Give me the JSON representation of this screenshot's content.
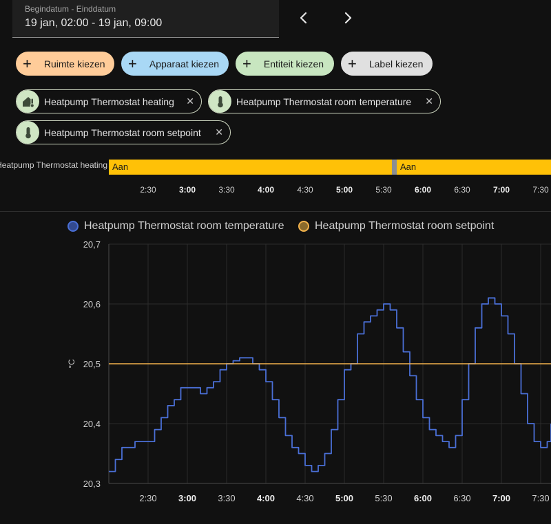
{
  "date_range": {
    "label": "Begindatum - Einddatum",
    "value": "19 jan, 02:00 - 19 jan, 09:00"
  },
  "nav": {
    "prev_icon": "chevron-left-icon",
    "next_icon": "chevron-right-icon"
  },
  "pickers": [
    {
      "label": "Ruimte kiezen",
      "color": "#ffcc99"
    },
    {
      "label": "Apparaat kiezen",
      "color": "#a9d8f5"
    },
    {
      "label": "Entiteit kiezen",
      "color": "#c8e6c0"
    },
    {
      "label": "Label kiezen",
      "color": "#e0e0e0"
    }
  ],
  "selected_entities": [
    {
      "name": "Heatpump Thermostat heating",
      "icon": "home-thermometer-icon"
    },
    {
      "name": "Heatpump Thermostat room temperature",
      "icon": "thermometer-icon"
    },
    {
      "name": "Heatpump Thermostat room setpoint",
      "icon": "thermometer-icon"
    }
  ],
  "timeline": {
    "entity_label": "Heatpump Thermostat heating",
    "segments": [
      {
        "state": "Aan",
        "start": "02:00",
        "end": "05:40"
      },
      {
        "state": "Aan",
        "start": "05:43",
        "end": "09:00"
      }
    ],
    "ticks": [
      "2:30",
      "3:00",
      "3:30",
      "4:00",
      "4:30",
      "5:00",
      "5:30",
      "6:00",
      "6:30",
      "7:00",
      "7:30"
    ],
    "major_ticks": [
      "3:00",
      "4:00",
      "5:00",
      "6:00",
      "7:00"
    ]
  },
  "chart_data": {
    "type": "line",
    "ylabel": "°C",
    "ylim": [
      20.3,
      20.7
    ],
    "yticks": [
      "20,3",
      "20,4",
      "20,5",
      "20,6",
      "20,7"
    ],
    "xticks": [
      "2:30",
      "3:00",
      "3:30",
      "4:00",
      "4:30",
      "5:00",
      "5:30",
      "6:00",
      "6:30",
      "7:00",
      "7:30"
    ],
    "major_ticks": [
      "3:00",
      "4:00",
      "5:00",
      "6:00",
      "7:00"
    ],
    "grid": true,
    "legend_position": "top",
    "series": [
      {
        "name": "Heatpump Thermostat room temperature",
        "color": "#4a6fd6",
        "step": true,
        "x": [
          "02:00",
          "02:05",
          "02:10",
          "02:15",
          "02:20",
          "02:25",
          "02:30",
          "02:35",
          "02:40",
          "02:45",
          "02:50",
          "02:55",
          "03:00",
          "03:05",
          "03:10",
          "03:15",
          "03:20",
          "03:25",
          "03:30",
          "03:35",
          "03:40",
          "03:45",
          "03:50",
          "03:55",
          "04:00",
          "04:05",
          "04:10",
          "04:15",
          "04:20",
          "04:25",
          "04:30",
          "04:35",
          "04:40",
          "04:45",
          "04:50",
          "04:55",
          "05:00",
          "05:05",
          "05:10",
          "05:15",
          "05:20",
          "05:25",
          "05:30",
          "05:35",
          "05:40",
          "05:45",
          "05:50",
          "05:55",
          "06:00",
          "06:05",
          "06:10",
          "06:15",
          "06:20",
          "06:25",
          "06:30",
          "06:35",
          "06:40",
          "06:45",
          "06:50",
          "06:55",
          "07:00",
          "07:05",
          "07:10",
          "07:15",
          "07:20",
          "07:25",
          "07:30",
          "07:35",
          "07:40"
        ],
        "values": [
          20.32,
          20.34,
          20.36,
          20.36,
          20.37,
          20.37,
          20.37,
          20.39,
          20.41,
          20.43,
          20.44,
          20.46,
          20.46,
          20.46,
          20.45,
          20.46,
          20.47,
          20.49,
          20.5,
          20.505,
          20.51,
          20.51,
          20.5,
          20.49,
          20.47,
          20.44,
          20.41,
          20.38,
          20.36,
          20.35,
          20.33,
          20.32,
          20.33,
          20.35,
          20.39,
          20.44,
          20.49,
          20.5,
          20.55,
          20.57,
          20.58,
          20.59,
          20.6,
          20.59,
          20.56,
          20.52,
          20.48,
          20.44,
          20.41,
          20.39,
          20.38,
          20.37,
          20.36,
          20.38,
          20.44,
          20.5,
          20.56,
          20.6,
          20.61,
          20.6,
          20.58,
          20.55,
          20.5,
          20.45,
          20.4,
          20.37,
          20.36,
          20.37,
          20.4
        ]
      },
      {
        "name": "Heatpump Thermostat room setpoint",
        "color": "#f2b24c",
        "step": true,
        "x": [
          "02:00",
          "09:00"
        ],
        "values": [
          20.5,
          20.5
        ]
      }
    ]
  }
}
